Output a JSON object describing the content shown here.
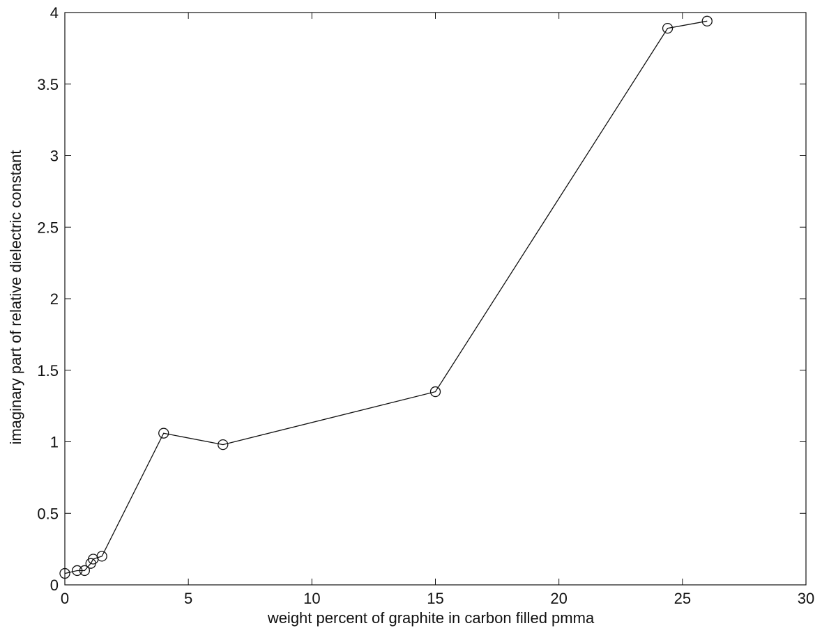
{
  "chart_data": {
    "type": "line",
    "title": "",
    "xlabel": "weight percent of graphite in carbon filled pmma",
    "ylabel": "imaginary part of relative dielectric constant",
    "xlim": [
      0,
      30
    ],
    "ylim": [
      0,
      4
    ],
    "xticks": [
      "0",
      "5",
      "10",
      "15",
      "20",
      "25",
      "30"
    ],
    "yticks": [
      "0",
      "0.5",
      "1",
      "1.5",
      "2",
      "2.5",
      "3",
      "3.5",
      "4"
    ],
    "grid": false,
    "legend": "none",
    "marker": "open-circle",
    "line_color": "#111111",
    "series": [
      {
        "x": [
          0.0,
          0.5,
          0.8,
          1.05,
          1.15,
          1.5,
          4.0,
          6.4,
          15.0,
          24.4,
          26.0
        ],
        "y": [
          0.08,
          0.1,
          0.1,
          0.15,
          0.18,
          0.2,
          1.06,
          0.98,
          1.35,
          3.89,
          3.94
        ]
      }
    ]
  }
}
